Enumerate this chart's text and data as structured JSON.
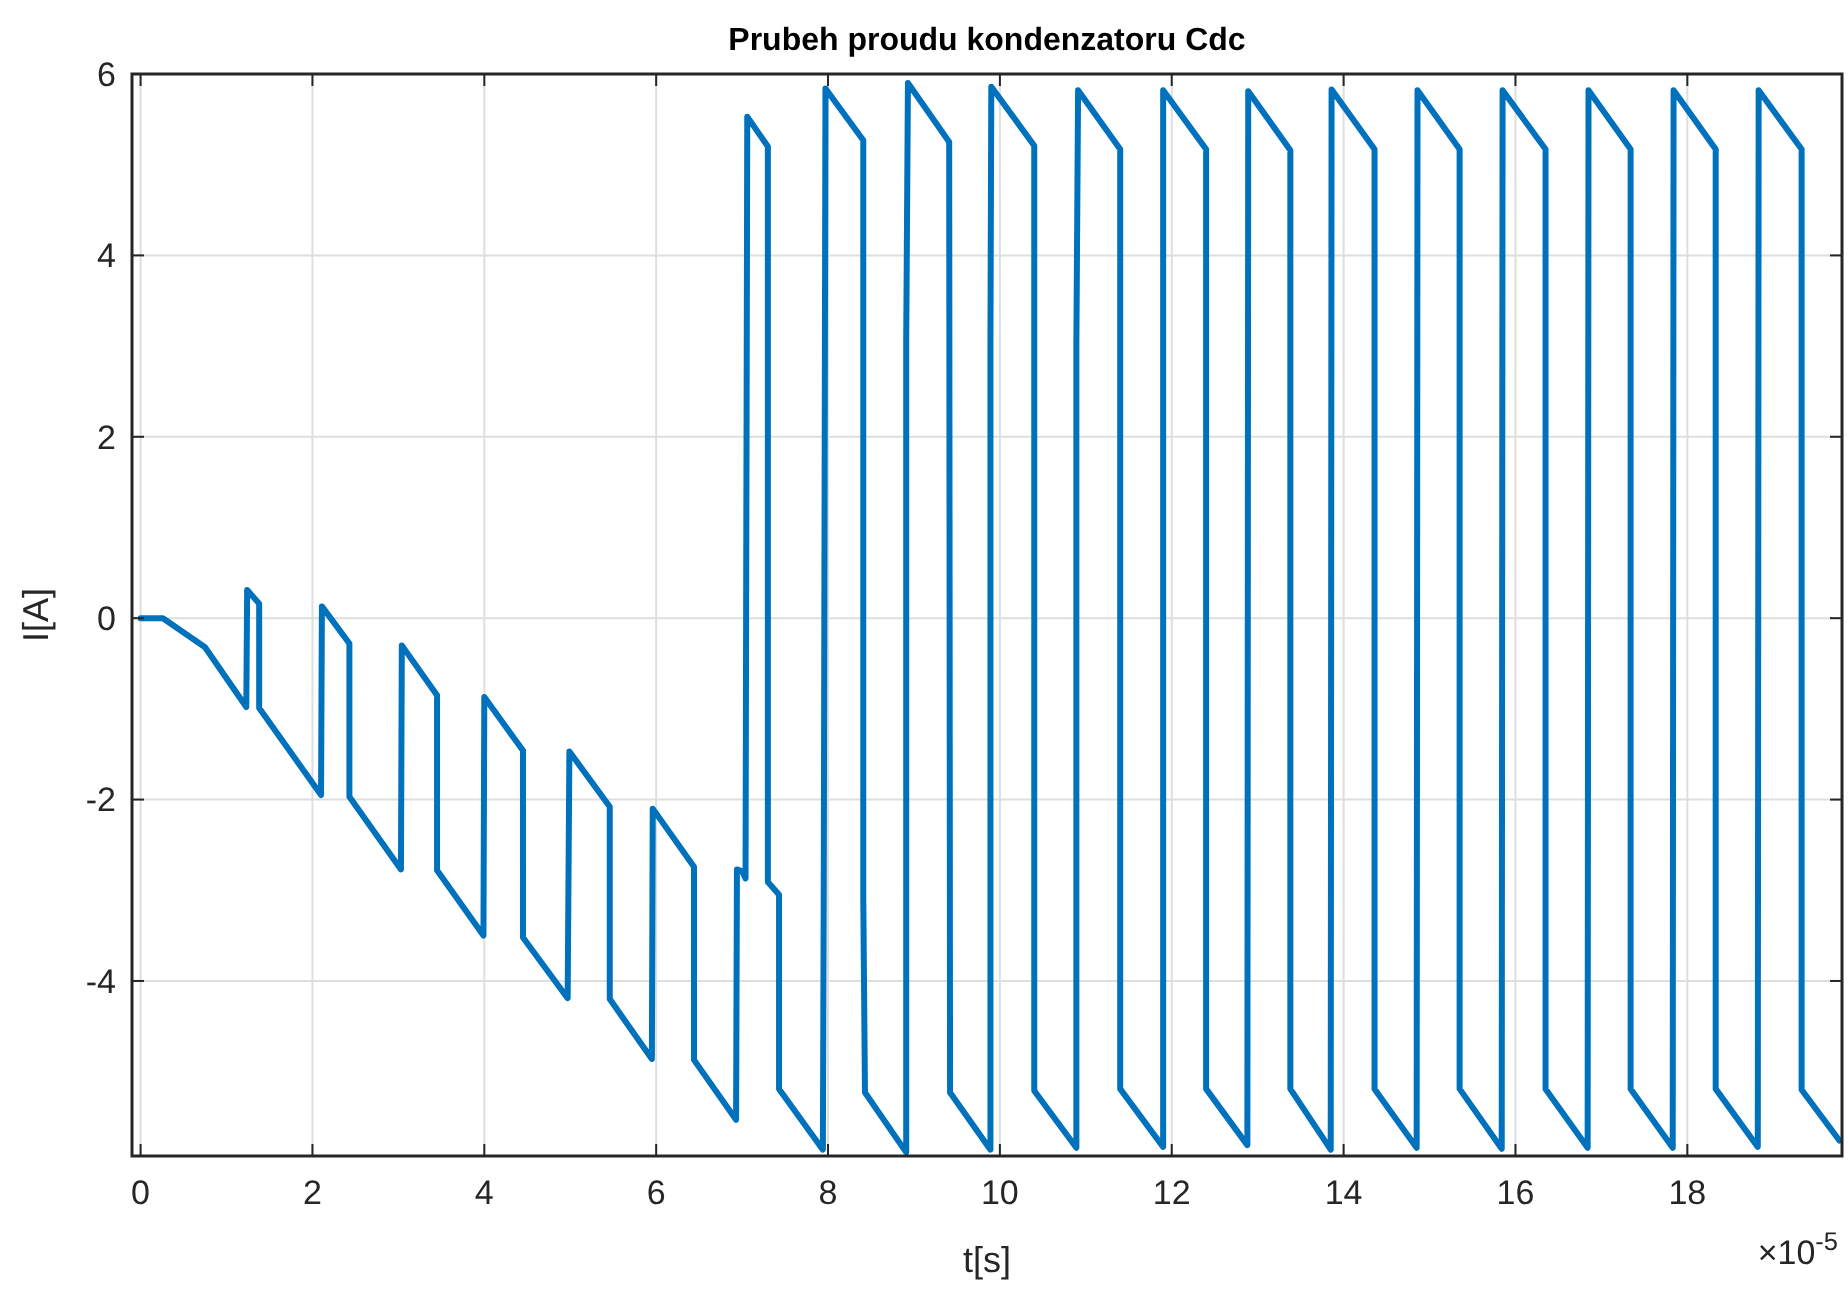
{
  "chart_data": {
    "type": "line",
    "title": "Prubeh proudu kondenzatoru Cdc",
    "xlabel": "t[s]",
    "ylabel": "I[A]",
    "annotations": [
      "×10$^{-5}$"
    ],
    "xlim": [
      -0.1,
      19.8
    ],
    "xticks": [
      0,
      2,
      4,
      6,
      8,
      10,
      12,
      14,
      16,
      18
    ],
    "ylim": [
      -5.93,
      6
    ],
    "yticks": [
      -4,
      -2,
      0,
      2,
      4,
      6
    ],
    "grid": true,
    "marker": "none",
    "line_style": "solid",
    "series": [
      {
        "color": "#0072bd",
        "x": [
          0,
          0.26,
          0.75,
          1.23,
          1.24,
          1.38,
          1.38,
          2.1,
          2.11,
          2.43,
          2.43,
          3.03,
          3.04,
          3.45,
          3.45,
          3.99,
          4,
          4.45,
          4.45,
          4.97,
          4.99,
          5.46,
          5.46,
          5.95,
          5.96,
          6.44,
          6.44,
          6.93,
          6.94,
          7,
          7.04,
          7.06,
          7.3,
          7.3,
          7.43,
          7.43,
          7.94,
          7.95,
          7.97,
          8.41,
          8.41,
          8.43,
          8.91,
          8.91,
          8.93,
          9.41,
          9.42,
          9.89,
          9.89,
          9.9,
          10.4,
          10.4,
          10.89,
          10.89,
          10.91,
          11.4,
          11.4,
          11.9,
          11.9,
          12.4,
          12.4,
          12.88,
          12.89,
          13.38,
          13.38,
          13.85,
          13.86,
          14.36,
          14.36,
          14.85,
          14.86,
          15.35,
          15.35,
          15.84,
          15.85,
          16.35,
          16.35,
          16.84,
          16.85,
          17.34,
          17.34,
          17.83,
          17.84,
          18.33,
          18.33,
          18.82,
          18.83,
          19.33,
          19.33,
          19.77
        ],
        "values": [
          0,
          0,
          -0.32,
          -0.98,
          0.31,
          0.16,
          -0.99,
          -1.95,
          0.13,
          -0.28,
          -1.97,
          -2.77,
          -0.3,
          -0.85,
          -2.78,
          -3.5,
          -0.87,
          -1.46,
          -3.52,
          -4.19,
          -1.47,
          -2.08,
          -4.2,
          -4.86,
          -2.1,
          -2.74,
          -4.87,
          -5.53,
          -2.77,
          -2.79,
          -2.87,
          5.53,
          5.2,
          -2.91,
          -3.05,
          -5.19,
          -5.86,
          -3.07,
          5.84,
          5.27,
          -3.07,
          -5.23,
          -5.89,
          3.08,
          5.9,
          5.25,
          -5.23,
          -5.86,
          3.05,
          5.86,
          5.21,
          -5.21,
          -5.84,
          3.02,
          5.82,
          5.17,
          -5.19,
          -5.83,
          5.82,
          5.17,
          -5.19,
          -5.81,
          5.81,
          5.16,
          -5.19,
          -5.86,
          5.83,
          5.17,
          -5.19,
          -5.84,
          5.82,
          5.17,
          -5.19,
          -5.85,
          5.82,
          5.17,
          -5.19,
          -5.84,
          5.82,
          5.17,
          -5.19,
          -5.84,
          5.82,
          5.17,
          -5.19,
          -5.83,
          5.82,
          5.17,
          -5.2,
          -5.76
        ]
      }
    ]
  }
}
